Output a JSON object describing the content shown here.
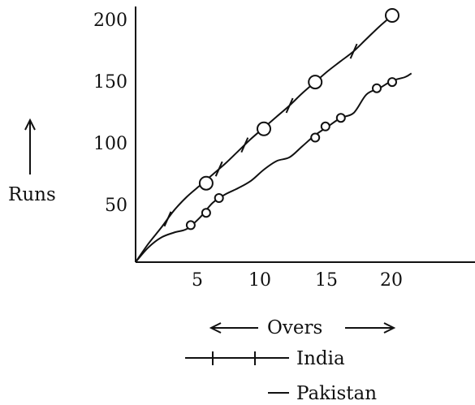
{
  "chart_data": {
    "type": "line",
    "xlabel": "Overs",
    "ylabel": "Runs",
    "x_ticks": [
      5,
      10,
      15,
      20
    ],
    "y_ticks": [
      50,
      100,
      150,
      200
    ],
    "xlim": [
      0,
      27
    ],
    "ylim": [
      0,
      210
    ],
    "series": [
      {
        "name": "India",
        "curve": [
          [
            0,
            0
          ],
          [
            1,
            15
          ],
          [
            2,
            28
          ],
          [
            3,
            42
          ],
          [
            4,
            53
          ],
          [
            5,
            62
          ],
          [
            6,
            71
          ],
          [
            7,
            80
          ],
          [
            8,
            90
          ],
          [
            9,
            100
          ],
          [
            10,
            109
          ],
          [
            11,
            118
          ],
          [
            12,
            127
          ],
          [
            13,
            137
          ],
          [
            14,
            146
          ],
          [
            15,
            155
          ],
          [
            16,
            163
          ],
          [
            17,
            171
          ],
          [
            18,
            181
          ],
          [
            19,
            191
          ],
          [
            20,
            200
          ]
        ],
        "wicket_overs": [
          2.5,
          6.5,
          8.5,
          12,
          17
        ],
        "circled_points": [
          [
            5.5,
            64
          ],
          [
            10,
            108
          ],
          [
            14,
            146
          ],
          [
            20,
            200
          ]
        ]
      },
      {
        "name": "Pakistan",
        "curve": [
          [
            0,
            0
          ],
          [
            1,
            12
          ],
          [
            2,
            20
          ],
          [
            3,
            24
          ],
          [
            4,
            27
          ],
          [
            5,
            36
          ],
          [
            6,
            48
          ],
          [
            7,
            55
          ],
          [
            8,
            60
          ],
          [
            9,
            66
          ],
          [
            10,
            75
          ],
          [
            11,
            82
          ],
          [
            12,
            85
          ],
          [
            13,
            94
          ],
          [
            14,
            103
          ],
          [
            15,
            110
          ],
          [
            16,
            117
          ],
          [
            17,
            121
          ],
          [
            18,
            136
          ],
          [
            19,
            141
          ],
          [
            20,
            147
          ],
          [
            21,
            150
          ],
          [
            21.5,
            153
          ]
        ],
        "circled_points": [
          [
            4.3,
            30
          ],
          [
            5.5,
            40
          ],
          [
            6.5,
            52
          ],
          [
            14,
            101
          ],
          [
            14.8,
            110
          ],
          [
            16,
            117
          ],
          [
            18.8,
            141
          ],
          [
            20,
            146
          ]
        ]
      }
    ]
  },
  "labels": {
    "runs": "Runs",
    "overs": "Overs",
    "legend_india": "India",
    "legend_pakistan": "Pakistan"
  },
  "axis_numbers": {
    "y200": "200",
    "y150": "150",
    "y100": "100",
    "y50": "50",
    "x5": "5",
    "x10": "10",
    "x15": "15",
    "x20": "20"
  }
}
